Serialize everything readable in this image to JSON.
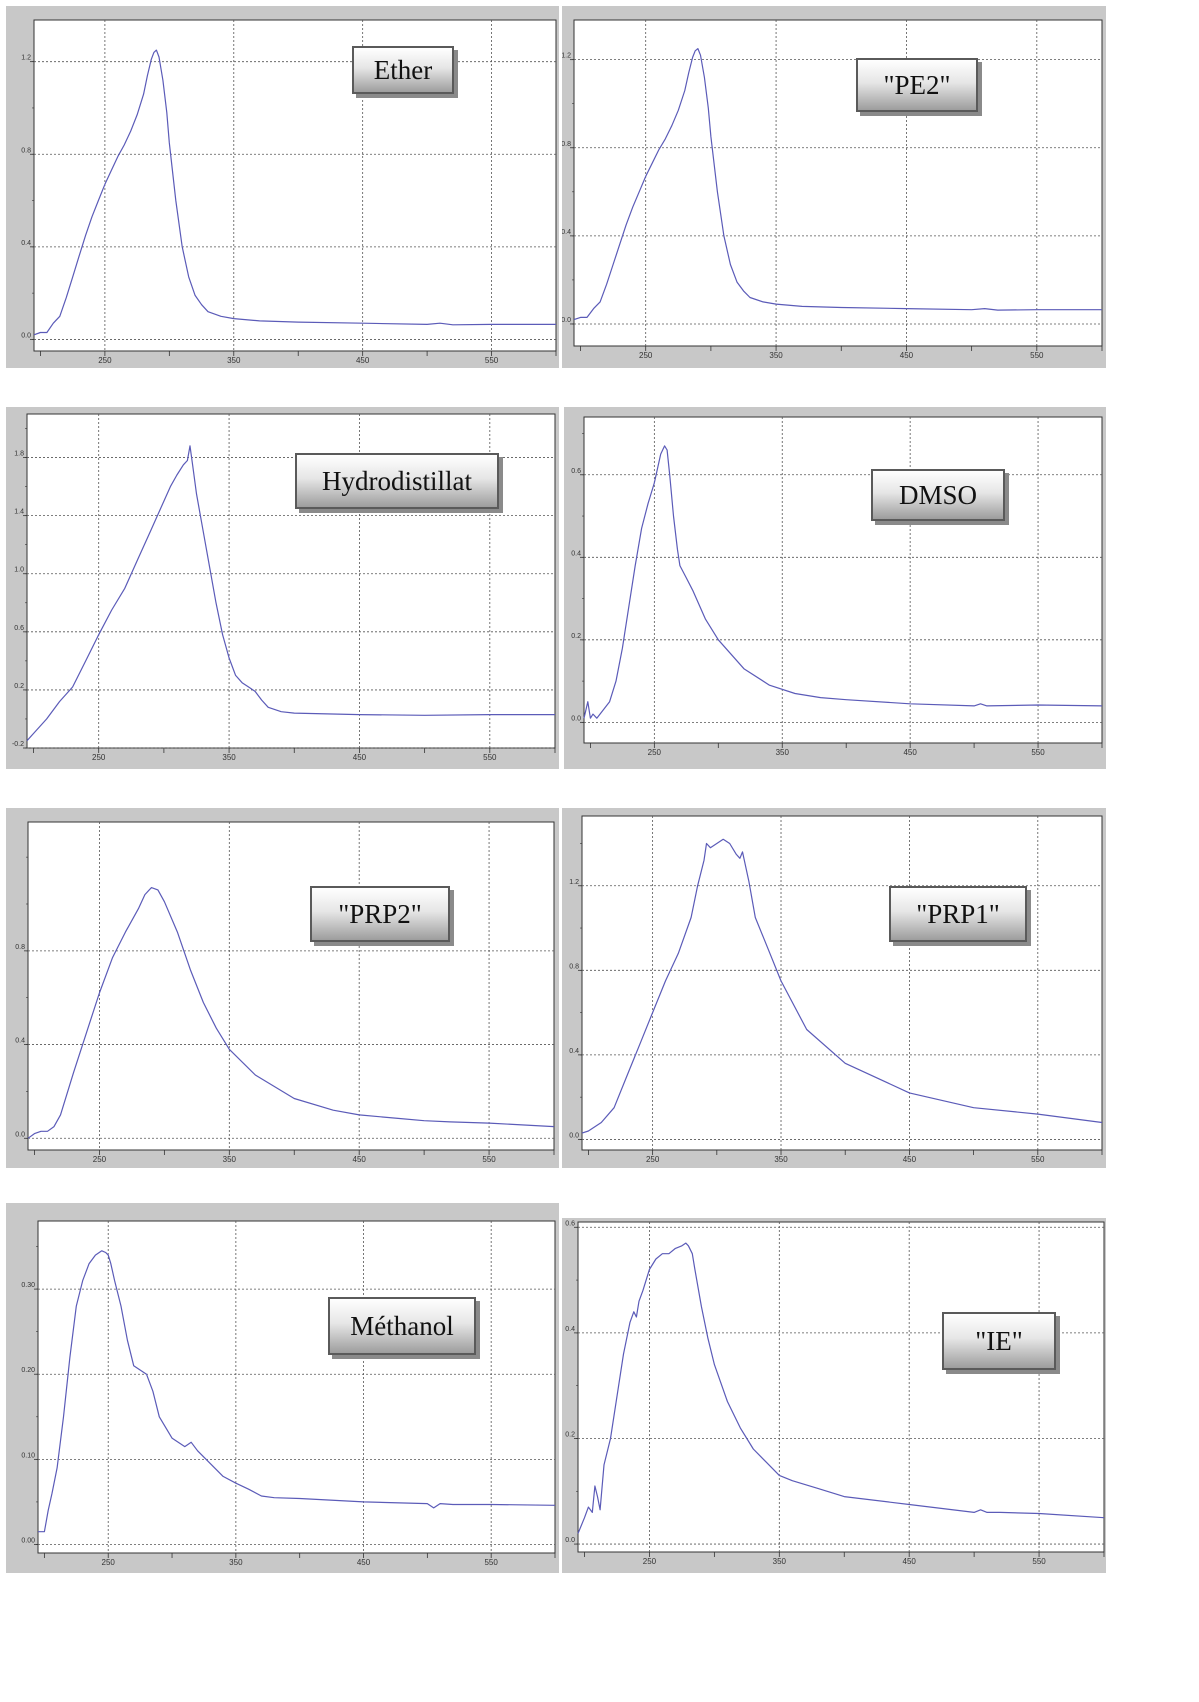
{
  "colors": {
    "panel_bg": "#c8c8c8",
    "plot_bg": "#ffffff",
    "curve": "#5b5bb8",
    "grid": "#555555",
    "axis_text": "#333333"
  },
  "chart_data": [
    {
      "type": "line",
      "label": "Ether",
      "xlim": [
        195,
        600
      ],
      "ylim": [
        -0.05,
        1.38
      ],
      "xticks": [
        250,
        350,
        450,
        550
      ],
      "xtick_labels": [
        "250",
        "350",
        "450",
        "550"
      ],
      "yticks": [
        0.0,
        0.4,
        0.8,
        1.2
      ],
      "ytick_labels": [
        "0.0",
        "0.4",
        "0.8",
        "1.2"
      ],
      "series": [
        {
          "x": [
            195,
            200,
            205,
            210,
            215,
            220,
            225,
            230,
            235,
            240,
            245,
            250,
            255,
            260,
            265,
            270,
            275,
            280,
            283,
            286,
            288,
            290,
            292,
            295,
            298,
            300,
            305,
            310,
            315,
            320,
            325,
            330,
            340,
            350,
            370,
            400,
            450,
            500,
            510,
            520,
            550,
            600
          ],
          "y": [
            0.02,
            0.03,
            0.03,
            0.07,
            0.1,
            0.18,
            0.27,
            0.36,
            0.45,
            0.53,
            0.6,
            0.67,
            0.73,
            0.79,
            0.84,
            0.9,
            0.97,
            1.06,
            1.14,
            1.21,
            1.24,
            1.25,
            1.22,
            1.12,
            0.98,
            0.85,
            0.6,
            0.4,
            0.27,
            0.19,
            0.15,
            0.12,
            0.1,
            0.09,
            0.08,
            0.075,
            0.07,
            0.065,
            0.07,
            0.063,
            0.065,
            0.065
          ]
        }
      ]
    },
    {
      "type": "line",
      "label": "\"PE2\"",
      "xlim": [
        195,
        600
      ],
      "ylim": [
        -0.1,
        1.38
      ],
      "xticks": [
        250,
        350,
        450,
        550
      ],
      "xtick_labels": [
        "250",
        "350",
        "450",
        "550"
      ],
      "yticks": [
        0.0,
        0.4,
        0.8,
        1.2
      ],
      "ytick_labels": [
        "0.0",
        "0.4",
        "0.8",
        "1.2"
      ],
      "series": [
        {
          "x": [
            195,
            200,
            205,
            210,
            215,
            220,
            225,
            230,
            235,
            240,
            245,
            250,
            255,
            260,
            265,
            270,
            275,
            280,
            283,
            286,
            288,
            290,
            292,
            295,
            298,
            300,
            305,
            310,
            315,
            320,
            325,
            330,
            340,
            350,
            370,
            400,
            450,
            500,
            510,
            520,
            550,
            600
          ],
          "y": [
            0.02,
            0.03,
            0.03,
            0.07,
            0.1,
            0.18,
            0.27,
            0.36,
            0.45,
            0.53,
            0.6,
            0.67,
            0.73,
            0.79,
            0.84,
            0.9,
            0.97,
            1.06,
            1.14,
            1.21,
            1.24,
            1.25,
            1.22,
            1.12,
            0.98,
            0.85,
            0.6,
            0.4,
            0.27,
            0.19,
            0.15,
            0.12,
            0.1,
            0.09,
            0.08,
            0.075,
            0.07,
            0.065,
            0.07,
            0.063,
            0.065,
            0.065
          ]
        }
      ]
    },
    {
      "type": "line",
      "label": "Hydrodistillat",
      "xlim": [
        195,
        600
      ],
      "ylim": [
        -0.2,
        2.1
      ],
      "xticks": [
        250,
        350,
        450,
        550
      ],
      "xtick_labels": [
        "250",
        "350",
        "450",
        "550"
      ],
      "yticks": [
        -0.2,
        0.2,
        0.6,
        1.0,
        1.4,
        1.8
      ],
      "ytick_labels": [
        "-0.2",
        "0.2",
        "0.6",
        "1.0",
        "1.4",
        "1.8"
      ],
      "series": [
        {
          "x": [
            195,
            200,
            210,
            220,
            230,
            240,
            250,
            260,
            270,
            280,
            290,
            300,
            305,
            310,
            315,
            318,
            320,
            322,
            325,
            330,
            335,
            340,
            345,
            350,
            355,
            360,
            365,
            370,
            375,
            380,
            390,
            400,
            450,
            500,
            550,
            600
          ],
          "y": [
            -0.15,
            -0.1,
            0.0,
            0.12,
            0.22,
            0.4,
            0.58,
            0.75,
            0.9,
            1.1,
            1.3,
            1.5,
            1.6,
            1.68,
            1.75,
            1.78,
            1.88,
            1.75,
            1.55,
            1.3,
            1.05,
            0.8,
            0.58,
            0.42,
            0.3,
            0.25,
            0.22,
            0.19,
            0.13,
            0.08,
            0.05,
            0.04,
            0.03,
            0.025,
            0.03,
            0.03
          ]
        }
      ]
    },
    {
      "type": "line",
      "label": "DMSO",
      "xlim": [
        195,
        600
      ],
      "ylim": [
        -0.05,
        0.74
      ],
      "xticks": [
        250,
        350,
        450,
        550
      ],
      "xtick_labels": [
        "250",
        "350",
        "450",
        "550"
      ],
      "yticks": [
        0.0,
        0.2,
        0.4,
        0.6
      ],
      "ytick_labels": [
        "0.0",
        "0.2",
        "0.4",
        "0.6"
      ],
      "series": [
        {
          "x": [
            195,
            198,
            200,
            202,
            205,
            210,
            215,
            220,
            225,
            230,
            235,
            240,
            245,
            250,
            255,
            258,
            260,
            262,
            265,
            268,
            270,
            275,
            280,
            290,
            300,
            320,
            340,
            360,
            380,
            400,
            450,
            500,
            505,
            510,
            550,
            600
          ],
          "y": [
            0.01,
            0.05,
            0.01,
            0.02,
            0.01,
            0.03,
            0.05,
            0.1,
            0.18,
            0.28,
            0.38,
            0.47,
            0.53,
            0.58,
            0.65,
            0.67,
            0.66,
            0.6,
            0.5,
            0.42,
            0.38,
            0.35,
            0.32,
            0.25,
            0.2,
            0.13,
            0.09,
            0.07,
            0.06,
            0.055,
            0.045,
            0.04,
            0.045,
            0.04,
            0.042,
            0.04
          ]
        }
      ]
    },
    {
      "type": "line",
      "label": "\"PRP2\"",
      "xlim": [
        195,
        600
      ],
      "ylim": [
        -0.05,
        1.35
      ],
      "xticks": [
        250,
        350,
        450,
        550
      ],
      "xtick_labels": [
        "250",
        "350",
        "450",
        "550"
      ],
      "yticks": [
        0.0,
        0.4,
        0.8
      ],
      "ytick_labels": [
        "0.0",
        "0.4",
        "0.8"
      ],
      "series": [
        {
          "x": [
            195,
            200,
            205,
            210,
            215,
            220,
            230,
            240,
            250,
            260,
            270,
            280,
            285,
            290,
            295,
            300,
            310,
            320,
            330,
            340,
            350,
            370,
            400,
            430,
            450,
            480,
            500,
            520,
            550,
            600
          ],
          "y": [
            0.0,
            0.02,
            0.03,
            0.03,
            0.05,
            0.1,
            0.28,
            0.45,
            0.62,
            0.77,
            0.88,
            0.98,
            1.04,
            1.07,
            1.06,
            1.01,
            0.88,
            0.72,
            0.58,
            0.47,
            0.38,
            0.27,
            0.17,
            0.12,
            0.1,
            0.085,
            0.075,
            0.07,
            0.065,
            0.05
          ]
        }
      ]
    },
    {
      "type": "line",
      "label": "\"PRP1\"",
      "xlim": [
        195,
        600
      ],
      "ylim": [
        -0.05,
        1.53
      ],
      "xticks": [
        250,
        350,
        450,
        550
      ],
      "xtick_labels": [
        "250",
        "350",
        "450",
        "550"
      ],
      "yticks": [
        0.0,
        0.4,
        0.8,
        1.2
      ],
      "ytick_labels": [
        "0.0",
        "0.4",
        "0.8",
        "1.2"
      ],
      "series": [
        {
          "x": [
            195,
            200,
            210,
            220,
            230,
            240,
            250,
            260,
            270,
            280,
            285,
            290,
            292,
            295,
            300,
            305,
            310,
            315,
            318,
            320,
            325,
            330,
            340,
            350,
            370,
            400,
            450,
            500,
            550,
            600
          ],
          "y": [
            0.03,
            0.04,
            0.08,
            0.15,
            0.3,
            0.45,
            0.6,
            0.75,
            0.88,
            1.05,
            1.2,
            1.32,
            1.4,
            1.38,
            1.4,
            1.42,
            1.4,
            1.35,
            1.33,
            1.36,
            1.22,
            1.05,
            0.9,
            0.75,
            0.52,
            0.36,
            0.22,
            0.15,
            0.12,
            0.08
          ]
        }
      ]
    },
    {
      "type": "line",
      "label": "Méthanol",
      "xlim": [
        195,
        600
      ],
      "ylim": [
        -0.01,
        0.38
      ],
      "xticks": [
        250,
        350,
        450,
        550
      ],
      "xtick_labels": [
        "250",
        "350",
        "450",
        "550"
      ],
      "yticks": [
        0.0,
        0.1,
        0.2,
        0.3
      ],
      "ytick_labels": [
        "0.00",
        "0.10",
        "0.20",
        "0.30"
      ],
      "series": [
        {
          "x": [
            195,
            200,
            203,
            206,
            210,
            215,
            220,
            225,
            230,
            235,
            240,
            245,
            248,
            250,
            252,
            255,
            260,
            265,
            270,
            275,
            280,
            285,
            290,
            300,
            310,
            315,
            320,
            330,
            340,
            350,
            360,
            370,
            380,
            400,
            450,
            500,
            505,
            510,
            520,
            550,
            600
          ],
          "y": [
            0.015,
            0.015,
            0.04,
            0.06,
            0.09,
            0.15,
            0.22,
            0.28,
            0.31,
            0.33,
            0.34,
            0.345,
            0.343,
            0.34,
            0.33,
            0.31,
            0.28,
            0.24,
            0.21,
            0.205,
            0.2,
            0.18,
            0.15,
            0.125,
            0.115,
            0.12,
            0.11,
            0.095,
            0.08,
            0.072,
            0.065,
            0.057,
            0.055,
            0.054,
            0.05,
            0.048,
            0.043,
            0.048,
            0.047,
            0.047,
            0.046
          ]
        }
      ]
    },
    {
      "type": "line",
      "label": "\"IE\"",
      "xlim": [
        195,
        600
      ],
      "ylim": [
        -0.015,
        0.61
      ],
      "xticks": [
        250,
        350,
        450,
        550
      ],
      "xtick_labels": [
        "250",
        "350",
        "450",
        "550"
      ],
      "yticks": [
        0.0,
        0.2,
        0.4,
        0.6
      ],
      "ytick_labels": [
        "0.0",
        "0.2",
        "0.4",
        "0.6"
      ],
      "series": [
        {
          "x": [
            195,
            200,
            203,
            206,
            208,
            210,
            212,
            215,
            220,
            225,
            230,
            235,
            238,
            240,
            242,
            245,
            250,
            255,
            260,
            265,
            270,
            275,
            278,
            280,
            283,
            285,
            290,
            295,
            300,
            310,
            320,
            330,
            340,
            350,
            360,
            380,
            400,
            450,
            500,
            505,
            510,
            520,
            550,
            600
          ],
          "y": [
            0.02,
            0.05,
            0.07,
            0.06,
            0.11,
            0.09,
            0.065,
            0.15,
            0.2,
            0.28,
            0.36,
            0.42,
            0.44,
            0.43,
            0.46,
            0.48,
            0.52,
            0.54,
            0.55,
            0.55,
            0.56,
            0.565,
            0.57,
            0.565,
            0.55,
            0.52,
            0.45,
            0.39,
            0.34,
            0.27,
            0.22,
            0.18,
            0.155,
            0.13,
            0.12,
            0.105,
            0.09,
            0.075,
            0.06,
            0.065,
            0.06,
            0.06,
            0.058,
            0.05
          ]
        }
      ]
    }
  ]
}
